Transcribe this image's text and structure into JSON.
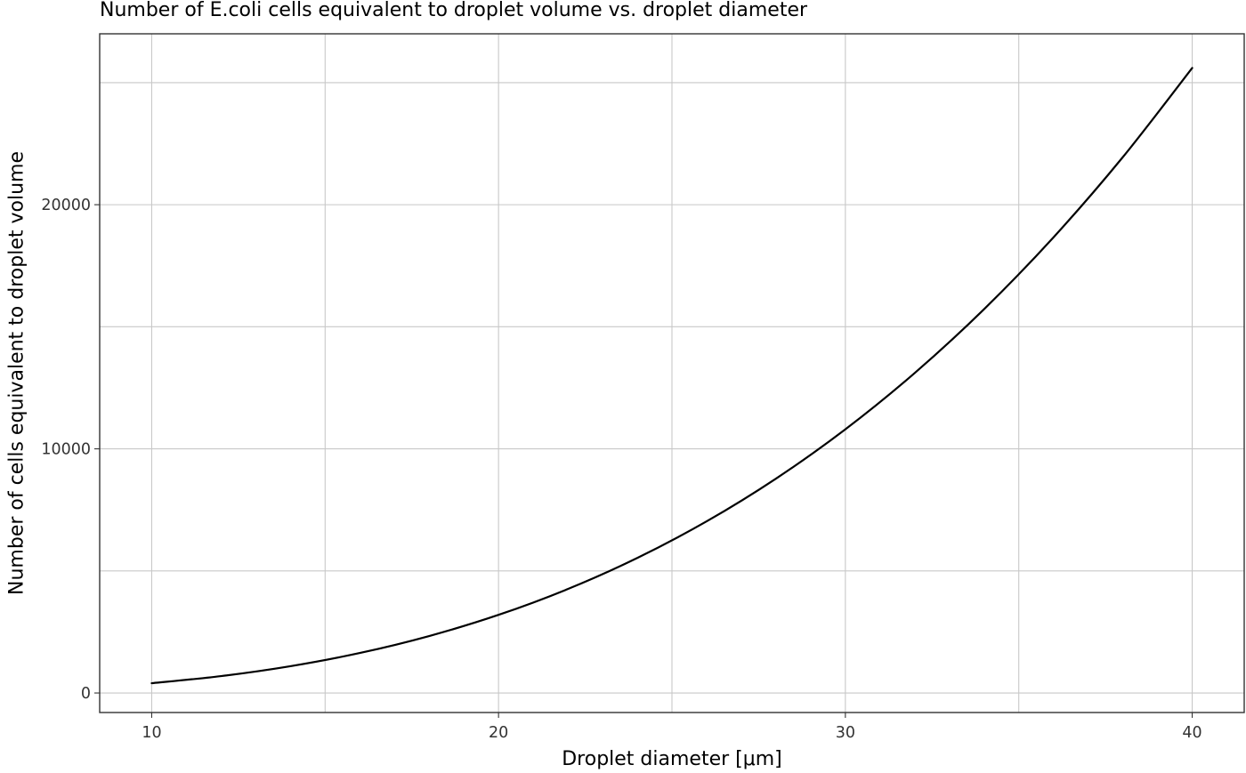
{
  "chart_data": {
    "type": "line",
    "title": "Number of E.coli cells equivalent to droplet volume vs. droplet diameter",
    "xlabel": "Droplet diameter [μm]",
    "ylabel": "Number of cells equivalent to droplet volume",
    "x_ticks": [
      10,
      20,
      30,
      40
    ],
    "x_tick_labels": [
      "10",
      "20",
      "30",
      "40"
    ],
    "x_minor_gridlines": [
      15,
      25,
      35
    ],
    "y_ticks": [
      0,
      10000,
      20000
    ],
    "y_tick_labels": [
      "0",
      "10000",
      "20000"
    ],
    "y_minor_gridlines": [
      5000,
      15000,
      25000
    ],
    "xlim": [
      8.5,
      41.5
    ],
    "ylim": [
      -800,
      27000
    ],
    "grid": true,
    "legend": "none",
    "series": [
      {
        "color": "#000000",
        "x": [
          10,
          12,
          14,
          16,
          18,
          20,
          22,
          24,
          26,
          28,
          30,
          32,
          34,
          36,
          38,
          40
        ],
        "values": [
          400,
          692,
          1098,
          1638,
          2333,
          3200,
          4259,
          5530,
          7030,
          8781,
          10800,
          13107,
          15722,
          18662,
          21949,
          25600
        ]
      }
    ]
  }
}
